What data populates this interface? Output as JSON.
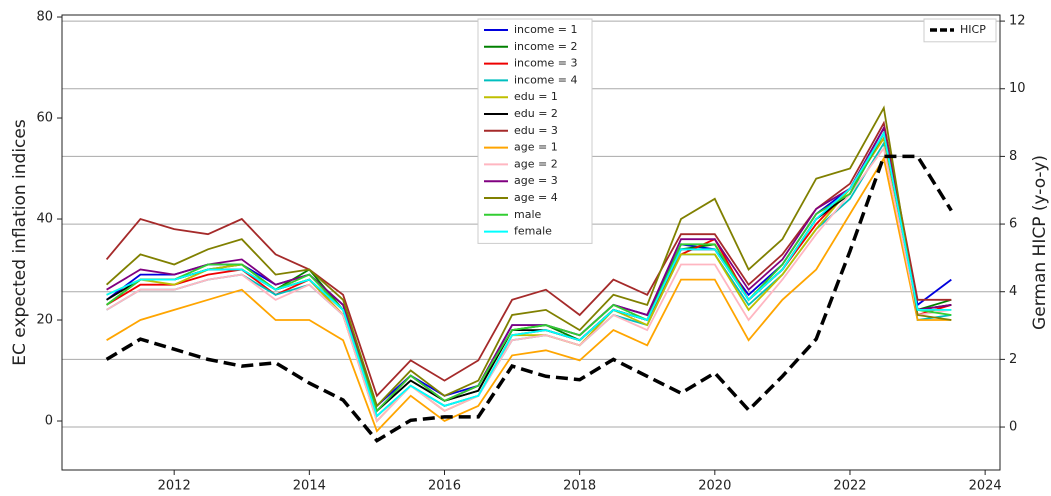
{
  "chart_data": {
    "type": "line",
    "x": [
      2011.0,
      2011.5,
      2012.0,
      2012.5,
      2013.0,
      2013.5,
      2014.0,
      2014.5,
      2015.0,
      2015.5,
      2016.0,
      2016.5,
      2017.0,
      2017.5,
      2018.0,
      2018.5,
      2019.0,
      2019.5,
      2020.0,
      2020.5,
      2021.0,
      2021.5,
      2022.0,
      2022.5,
      2023.0,
      2023.5
    ],
    "xlim": [
      2010.34,
      2024.22
    ],
    "xticks": [
      2012,
      2014,
      2016,
      2018,
      2020,
      2022,
      2024
    ],
    "ylim": [
      -9.7,
      80.4
    ],
    "yticks": [
      0,
      20,
      40,
      60,
      80
    ],
    "y2lim": [
      -1.27,
      12.18
    ],
    "y2ticks": [
      0,
      2,
      4,
      6,
      8,
      10,
      12
    ],
    "ylabel": "EC expected inflation indices",
    "y2label": "German HICP (y-o-y)",
    "grid": "y2",
    "legend_loc": "upper center",
    "y2_legend_loc": "upper right",
    "series": [
      {
        "name": "income = 1",
        "color": "#0000dd",
        "values": [
          24,
          29,
          29,
          31,
          31,
          27,
          29,
          23,
          3,
          9,
          5,
          7,
          19,
          19,
          17,
          23,
          21,
          35,
          34,
          25,
          31,
          41,
          46,
          58,
          23,
          28
        ]
      },
      {
        "name": "income = 2",
        "color": "#008000",
        "values": [
          23,
          28,
          28,
          30,
          31,
          26,
          30,
          22,
          2,
          8,
          4,
          6,
          18,
          19,
          16,
          22,
          20,
          34,
          35,
          24,
          30,
          40,
          45,
          57,
          22,
          24
        ]
      },
      {
        "name": "income = 3",
        "color": "#ee0000",
        "values": [
          23,
          27,
          27,
          29,
          30,
          25,
          28,
          21,
          1,
          7,
          3,
          5,
          17,
          18,
          16,
          22,
          20,
          33,
          36,
          24,
          30,
          39,
          46,
          56,
          21,
          23
        ]
      },
      {
        "name": "income = 4",
        "color": "#00bfbf",
        "values": [
          22,
          26,
          26,
          28,
          29,
          25,
          27,
          21,
          1,
          7,
          3,
          5,
          16,
          17,
          15,
          21,
          19,
          33,
          33,
          23,
          29,
          38,
          44,
          55,
          20,
          21
        ]
      },
      {
        "name": "edu = 1",
        "color": "#bfbf00",
        "values": [
          25,
          28,
          27,
          30,
          31,
          26,
          28,
          21,
          0,
          7,
          2,
          5,
          17,
          17,
          15,
          22,
          19,
          33,
          33,
          22,
          29,
          38,
          46,
          56,
          22,
          22
        ]
      },
      {
        "name": "edu = 2",
        "color": "#000000",
        "values": [
          24,
          28,
          28,
          30,
          30,
          26,
          28,
          22,
          2,
          8,
          4,
          6,
          18,
          18,
          16,
          22,
          20,
          34,
          34,
          24,
          30,
          40,
          45,
          57,
          22,
          23
        ]
      },
      {
        "name": "edu = 3",
        "color": "#a52a2a",
        "values": [
          32,
          40,
          38,
          37,
          40,
          33,
          30,
          25,
          5,
          12,
          8,
          12,
          24,
          26,
          21,
          28,
          25,
          37,
          37,
          27,
          33,
          42,
          47,
          59,
          24,
          24
        ]
      },
      {
        "name": "age = 1",
        "color": "#ffa500",
        "values": [
          16,
          20,
          22,
          24,
          26,
          20,
          20,
          16,
          -2,
          5,
          0,
          3,
          13,
          14,
          12,
          18,
          15,
          28,
          28,
          16,
          24,
          30,
          41,
          52,
          20,
          20
        ]
      },
      {
        "name": "age = 2",
        "color": "#ffb6c1",
        "values": [
          22,
          26,
          26,
          28,
          29,
          24,
          27,
          21,
          0,
          7,
          2,
          5,
          16,
          17,
          15,
          21,
          18,
          31,
          31,
          20,
          28,
          37,
          45,
          54,
          21,
          22
        ]
      },
      {
        "name": "age = 3",
        "color": "#800080",
        "values": [
          26,
          30,
          29,
          31,
          32,
          27,
          29,
          23,
          2,
          9,
          4,
          7,
          19,
          19,
          17,
          23,
          21,
          36,
          36,
          26,
          32,
          42,
          46,
          58,
          22,
          23
        ]
      },
      {
        "name": "age = 4",
        "color": "#808000",
        "values": [
          27,
          33,
          31,
          34,
          36,
          29,
          30,
          24,
          3,
          10,
          5,
          8,
          21,
          22,
          18,
          25,
          23,
          40,
          44,
          30,
          36,
          48,
          50,
          62,
          21,
          20
        ]
      },
      {
        "name": "male",
        "color": "#32cd32",
        "values": [
          23,
          28,
          28,
          31,
          31,
          26,
          29,
          22,
          2,
          9,
          4,
          7,
          18,
          19,
          17,
          23,
          20,
          35,
          35,
          24,
          31,
          41,
          45,
          57,
          22,
          21
        ]
      },
      {
        "name": "female",
        "color": "#00ffff",
        "values": [
          25,
          28,
          28,
          30,
          30,
          26,
          28,
          22,
          1,
          7,
          3,
          5,
          17,
          18,
          16,
          22,
          20,
          34,
          34,
          24,
          30,
          40,
          46,
          57,
          22,
          22
        ]
      },
      {
        "name": "HICP",
        "color": "#000000",
        "axis": "y2",
        "dash": "dashed",
        "values": [
          2.0,
          2.6,
          2.3,
          2.0,
          1.8,
          1.9,
          1.3,
          0.8,
          -0.4,
          0.2,
          0.3,
          0.3,
          1.8,
          1.5,
          1.4,
          2.0,
          1.5,
          1.0,
          1.6,
          0.5,
          1.5,
          2.6,
          5.2,
          8.0,
          8.0,
          6.4
        ]
      }
    ]
  }
}
